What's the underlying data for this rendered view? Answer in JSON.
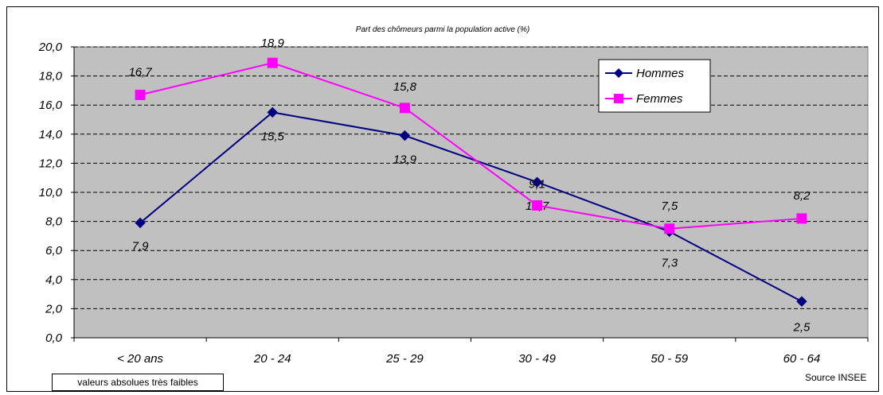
{
  "chart_data": {
    "type": "line",
    "title": "Part des chômeurs parmi la population active (%)",
    "categories": [
      "< 20 ans",
      "20 - 24",
      "25 - 29",
      "30 - 49",
      "50 - 59",
      "60 - 64"
    ],
    "series": [
      {
        "name": "Hommes",
        "values": [
          7.9,
          15.5,
          13.9,
          10.7,
          7.3,
          2.5
        ],
        "labels": [
          "7,9",
          "15,5",
          "13,9",
          "10,7",
          "7,3",
          "2,5"
        ],
        "color": "#000080",
        "marker": "diamond"
      },
      {
        "name": "Femmes",
        "values": [
          16.7,
          18.9,
          15.8,
          9.1,
          7.5,
          8.2
        ],
        "labels": [
          "16,7",
          "18,9",
          "15,8",
          "9,1",
          "7,5",
          "8,2"
        ],
        "color": "#FF00FF",
        "marker": "square"
      }
    ],
    "yticks": [
      "0,0",
      "2,0",
      "4,0",
      "6,0",
      "8,0",
      "10,0",
      "12,0",
      "14,0",
      "16,0",
      "18,0",
      "20,0"
    ],
    "ylim": [
      0,
      20
    ],
    "grid": true,
    "legend": "top-right",
    "plot_background": "#C0C0C0"
  },
  "footnote": "valeurs absolues très faibles",
  "source": "Source INSEE"
}
